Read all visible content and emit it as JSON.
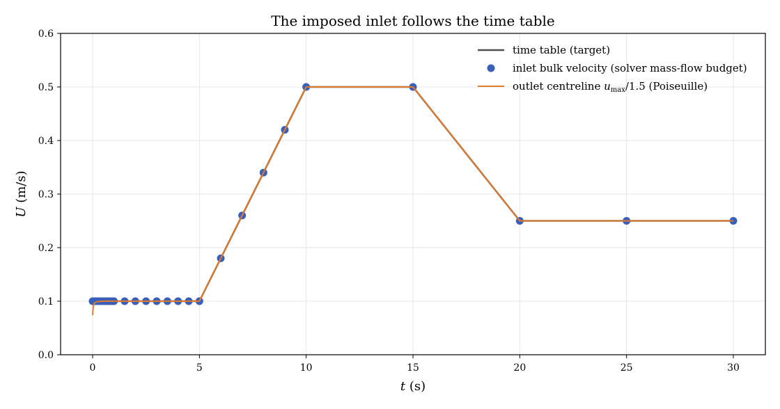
{
  "chart_data": {
    "type": "line",
    "title": "The imposed inlet follows the time table",
    "xlabel": {
      "var": "t",
      "unit": " (s)"
    },
    "ylabel": {
      "var": "U",
      "unit": " (m/s)"
    },
    "xlim": [
      -1.5,
      31.5
    ],
    "ylim": [
      0.0,
      0.6
    ],
    "xticks": [
      0,
      5,
      10,
      15,
      20,
      25,
      30
    ],
    "yticks": [
      0.0,
      0.1,
      0.2,
      0.3,
      0.4,
      0.5,
      0.6
    ],
    "xtick_labels": [
      "0",
      "5",
      "10",
      "15",
      "20",
      "25",
      "30"
    ],
    "ytick_labels": [
      "0.0",
      "0.1",
      "0.2",
      "0.3",
      "0.4",
      "0.5",
      "0.6"
    ],
    "grid": true,
    "legend_position": "top-right",
    "series": [
      {
        "name": "time table (target)",
        "kind": "line",
        "color": "#505050",
        "x": [
          0,
          5,
          10,
          15,
          20,
          30
        ],
        "y": [
          0.1,
          0.1,
          0.5,
          0.5,
          0.25,
          0.25
        ]
      },
      {
        "name": "inlet bulk velocity (solver mass-flow budget)",
        "kind": "scatter",
        "color": "#3a5fb8",
        "x": [
          0,
          0.1,
          0.2,
          0.3,
          0.4,
          0.5,
          0.6,
          0.7,
          0.8,
          0.9,
          1.0,
          1.5,
          2.0,
          2.5,
          3.0,
          3.5,
          4.0,
          4.5,
          5.0,
          6,
          7,
          8,
          9,
          10,
          15,
          20,
          25,
          30
        ],
        "y": [
          0.1,
          0.1,
          0.1,
          0.1,
          0.1,
          0.1,
          0.1,
          0.1,
          0.1,
          0.1,
          0.1,
          0.1,
          0.1,
          0.1,
          0.1,
          0.1,
          0.1,
          0.1,
          0.1,
          0.18,
          0.26,
          0.34,
          0.42,
          0.5,
          0.5,
          0.25,
          0.25,
          0.25
        ]
      },
      {
        "name": "outlet centreline u_max/1.5 (Poiseuille)",
        "legend_parts": {
          "pre": "outlet centreline ",
          "var": "u",
          "sub": "max",
          "post": "/1.5 (Poiseuille)"
        },
        "kind": "line",
        "color": "#e07b2e",
        "x": [
          0,
          0.03,
          0.06,
          0.1,
          0.15,
          0.2,
          0.3,
          0.5,
          1.0,
          5,
          10,
          15,
          20,
          30
        ],
        "y": [
          0.074,
          0.09,
          0.095,
          0.097,
          0.098,
          0.099,
          0.0995,
          0.1,
          0.1,
          0.1,
          0.5,
          0.5,
          0.25,
          0.25
        ]
      }
    ]
  }
}
